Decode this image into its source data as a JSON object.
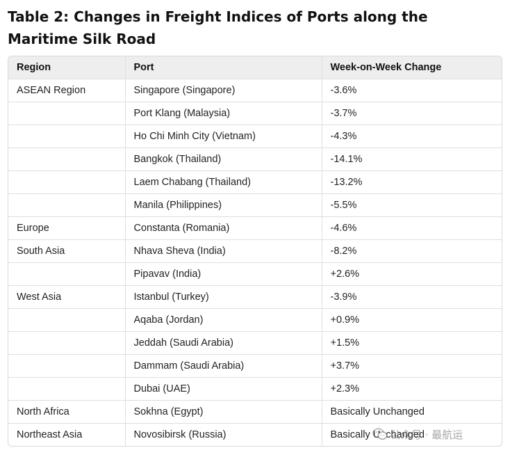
{
  "title": "Table 2: Changes in Freight Indices of Ports along the Maritime Silk Road",
  "table": {
    "headers": {
      "region": "Region",
      "port": "Port",
      "change": "Week-on-Week Change"
    },
    "rows": [
      {
        "region": "ASEAN Region",
        "port": "Singapore (Singapore)",
        "change": "-3.6%"
      },
      {
        "region": "",
        "port": "Port Klang (Malaysia)",
        "change": "-3.7%"
      },
      {
        "region": "",
        "port": "Ho Chi Minh City (Vietnam)",
        "change": "-4.3%"
      },
      {
        "region": "",
        "port": "Bangkok (Thailand)",
        "change": "-14.1%"
      },
      {
        "region": "",
        "port": "Laem Chabang (Thailand)",
        "change": "-13.2%"
      },
      {
        "region": "",
        "port": "Manila (Philippines)",
        "change": "-5.5%"
      },
      {
        "region": "Europe",
        "port": "Constanta (Romania)",
        "change": "-4.6%"
      },
      {
        "region": "South Asia",
        "port": "Nhava Sheva (India)",
        "change": "-8.2%"
      },
      {
        "region": "",
        "port": "Pipavav (India)",
        "change": "+2.6%"
      },
      {
        "region": "West Asia",
        "port": "Istanbul (Turkey)",
        "change": "-3.9%"
      },
      {
        "region": "",
        "port": "Aqaba (Jordan)",
        "change": "+0.9%"
      },
      {
        "region": "",
        "port": "Jeddah (Saudi Arabia)",
        "change": "+1.5%"
      },
      {
        "region": "",
        "port": "Dammam (Saudi Arabia)",
        "change": "+3.7%"
      },
      {
        "region": "",
        "port": "Dubai (UAE)",
        "change": "+2.3%"
      },
      {
        "region": "North Africa",
        "port": "Sokhna (Egypt)",
        "change": "Basically Unchanged"
      },
      {
        "region": "Northeast Asia",
        "port": "Novosibirsk (Russia)",
        "change": "Basically Unchanged"
      }
    ]
  },
  "watermark": {
    "text": "公众号 · 最航运",
    "icon": "wechat-icon"
  }
}
